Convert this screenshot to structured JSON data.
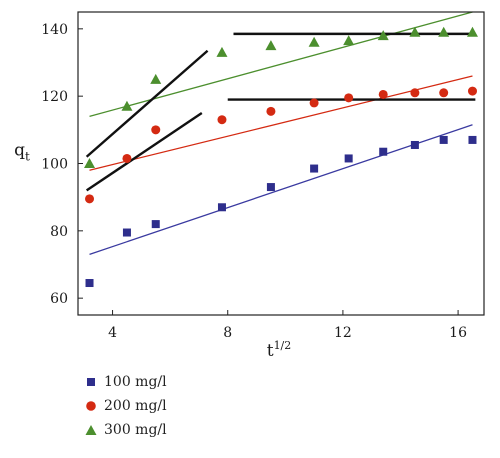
{
  "chart_data": {
    "type": "scatter",
    "xlabel_base": "t",
    "xlabel_exp": "1/2",
    "ylabel_base": "q",
    "ylabel_sub": "t",
    "xlim": [
      2.8,
      16.9
    ],
    "ylim": [
      55,
      145
    ],
    "xticks": [
      4,
      8,
      12,
      16
    ],
    "yticks": [
      60,
      80,
      100,
      120,
      140
    ],
    "series": [
      {
        "name": "100 mg/l",
        "marker": "square",
        "color": "#2e2e8c",
        "x": [
          3.2,
          4.5,
          5.5,
          7.8,
          9.5,
          11.0,
          12.2,
          13.4,
          14.5,
          15.5,
          16.5
        ],
        "y": [
          64.5,
          79.5,
          82.0,
          87.0,
          93.0,
          98.5,
          101.5,
          103.5,
          105.5,
          107.0,
          107.0
        ],
        "fit": {
          "x": [
            3.2,
            16.5
          ],
          "y": [
            73,
            111.5
          ],
          "color": "#3a3aa0"
        }
      },
      {
        "name": "200 mg/l",
        "marker": "circle",
        "color": "#d42a12",
        "x": [
          3.2,
          4.5,
          5.5,
          7.8,
          9.5,
          11.0,
          12.2,
          13.4,
          14.5,
          15.5,
          16.5
        ],
        "y": [
          89.5,
          101.5,
          110.0,
          113.0,
          115.5,
          118.0,
          119.5,
          120.5,
          121.0,
          121.0,
          121.5
        ],
        "fit": {
          "x": [
            3.2,
            16.5
          ],
          "y": [
            98,
            126
          ],
          "color": "#d42a12"
        }
      },
      {
        "name": "300 mg/l",
        "marker": "triangle",
        "color": "#4c8f2e",
        "x": [
          3.2,
          4.5,
          5.5,
          7.8,
          9.5,
          11.0,
          12.2,
          13.4,
          14.5,
          15.5,
          16.5
        ],
        "y": [
          100.0,
          117.0,
          125.0,
          133.0,
          135.0,
          136.0,
          136.5,
          138.0,
          139.0,
          139.0,
          139.0
        ],
        "fit": {
          "x": [
            3.2,
            16.5
          ],
          "y": [
            114,
            145
          ],
          "color": "#4c8f2e"
        }
      }
    ],
    "segment_lines": [
      {
        "x": [
          3.1,
          7.3
        ],
        "y": [
          102,
          133.5
        ]
      },
      {
        "x": [
          3.1,
          7.1
        ],
        "y": [
          92,
          115
        ]
      },
      {
        "x": [
          8.2,
          16.6
        ],
        "y": [
          138.5,
          138.5
        ]
      },
      {
        "x": [
          8.0,
          16.6
        ],
        "y": [
          119,
          119
        ]
      }
    ],
    "segment_color": "#111111",
    "legend_position": "bottom-left"
  }
}
